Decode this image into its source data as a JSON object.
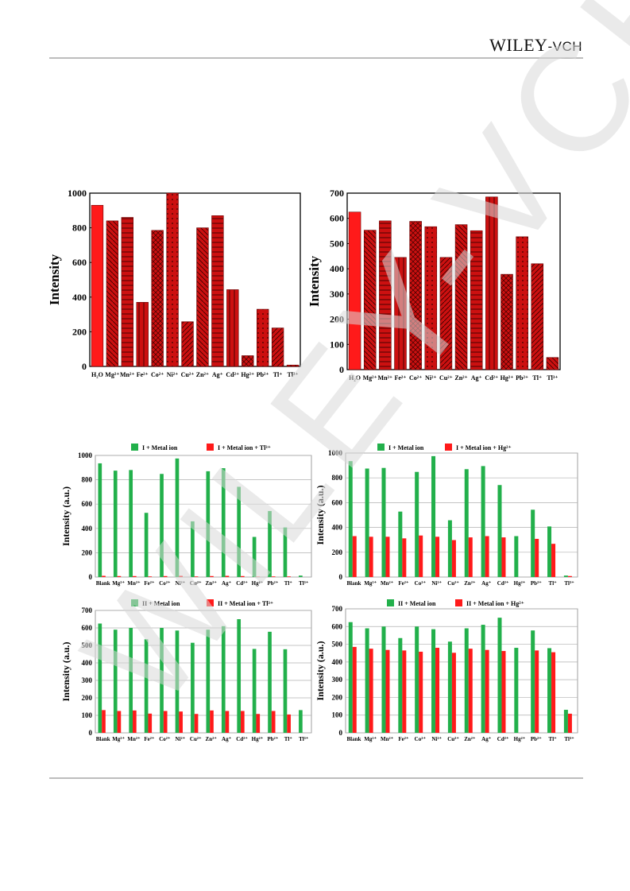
{
  "header": {
    "logo_main": "WILEY",
    "logo_suffix": "-VCH"
  },
  "watermark_text": "WILEY-VCH",
  "colors": {
    "dark_red": "#cc1010",
    "red": "#ff1a1a",
    "green": "#22b04b",
    "watermark": "#d9d9d9"
  },
  "chart_data": [
    {
      "type": "bar",
      "categories": [
        "H₂O",
        "Mg²⁺",
        "Mn²⁺",
        "Fe²⁺",
        "Co²⁺",
        "Ni²⁺",
        "Cu²⁺",
        "Zn²⁺",
        "Ag⁺",
        "Cd²⁺",
        "Hg²⁺",
        "Pb²⁺",
        "Tl⁺",
        "Tl³⁺"
      ],
      "values": [
        930,
        840,
        860,
        370,
        785,
        1000,
        258,
        800,
        870,
        443,
        62,
        330,
        222,
        8
      ],
      "ylabel": "Intensity",
      "ylim": [
        0,
        1000
      ],
      "yticks": [
        0,
        200,
        400,
        600,
        800,
        1000
      ]
    },
    {
      "type": "bar",
      "categories": [
        "H₂O",
        "Mg²⁺",
        "Mn²⁺",
        "Fe²⁺",
        "Co²⁺",
        "Ni²⁺",
        "Cu²⁺",
        "Zn²⁺",
        "Ag⁺",
        "Cd²⁺",
        "Hg²⁺",
        "Pb²⁺",
        "Tl⁺",
        "Tl³⁺"
      ],
      "values": [
        625,
        553,
        590,
        445,
        588,
        567,
        445,
        575,
        551,
        685,
        378,
        527,
        420,
        48
      ],
      "ylabel": "Intensity",
      "ylim": [
        0,
        700
      ],
      "yticks": [
        0,
        100,
        200,
        300,
        400,
        500,
        600,
        700
      ]
    },
    {
      "type": "bar",
      "categories": [
        "Blank",
        "Mg²⁺",
        "Mn²⁺",
        "Fe²⁺",
        "Co²⁺",
        "Ni²⁺",
        "Cu²⁺",
        "Zn²⁺",
        "Ag⁺",
        "Cd²⁺",
        "Hg²⁺",
        "Pb²⁺",
        "Tl⁺",
        "Tl³⁺"
      ],
      "series": [
        {
          "name": "I + Metal ion",
          "values": [
            935,
            875,
            880,
            528,
            848,
            975,
            458,
            870,
            895,
            742,
            330,
            543,
            408,
            12
          ]
        },
        {
          "name": "I + Metal ion + Tl³⁺",
          "values": [
            10,
            8,
            8,
            5,
            8,
            10,
            5,
            8,
            10,
            8,
            3,
            5,
            5,
            0
          ]
        }
      ],
      "ylabel": "Intensity (a.u.)",
      "ylim": [
        0,
        1000
      ],
      "yticks": [
        0,
        200,
        400,
        600,
        800,
        1000
      ]
    },
    {
      "type": "bar",
      "categories": [
        "Blank",
        "Mg²⁺",
        "Mn²⁺",
        "Fe²⁺",
        "Co²⁺",
        "Ni²⁺",
        "Cu²⁺",
        "Zn²⁺",
        "Ag⁺",
        "Cd²⁺",
        "Hg²⁺",
        "Pb²⁺",
        "Tl⁺",
        "Tl³⁺"
      ],
      "series": [
        {
          "name": "I + Metal ion",
          "values": [
            935,
            875,
            880,
            528,
            848,
            975,
            458,
            870,
            895,
            742,
            330,
            543,
            408,
            12
          ]
        },
        {
          "name": "I + Metal ion + Hg²⁺",
          "values": [
            330,
            325,
            325,
            312,
            335,
            325,
            298,
            320,
            330,
            320,
            0,
            308,
            268,
            8
          ]
        }
      ],
      "ylabel": "Intensity (a.u.)",
      "ylim": [
        0,
        1000
      ],
      "yticks": [
        0,
        200,
        400,
        600,
        800,
        1000
      ]
    },
    {
      "type": "bar",
      "categories": [
        "Blank",
        "Mg²⁺",
        "Mn²⁺",
        "Fe²⁺",
        "Co²⁺",
        "Ni²⁺",
        "Cu²⁺",
        "Zn²⁺",
        "Ag⁺",
        "Cd²⁺",
        "Hg²⁺",
        "Pb²⁺",
        "Tl⁺",
        "Tl³⁺"
      ],
      "series": [
        {
          "name": "II + Metal ion",
          "values": [
            625,
            590,
            600,
            535,
            600,
            585,
            515,
            590,
            610,
            650,
            480,
            578,
            478,
            130
          ]
        },
        {
          "name": "II + Metal ion + Tl³⁺",
          "values": [
            130,
            125,
            128,
            110,
            125,
            122,
            108,
            128,
            125,
            125,
            108,
            125,
            105,
            0
          ]
        }
      ],
      "ylabel": "Intensity (a.u.)",
      "ylim": [
        0,
        700
      ],
      "yticks": [
        0,
        100,
        200,
        300,
        400,
        500,
        600,
        700
      ]
    },
    {
      "type": "bar",
      "categories": [
        "Blank",
        "Mg²⁺",
        "Mn²⁺",
        "Fe²⁺",
        "Co²⁺",
        "Ni²⁺",
        "Cu²⁺",
        "Zn²⁺",
        "Ag⁺",
        "Cd²⁺",
        "Hg²⁺",
        "Pb²⁺",
        "Tl⁺",
        "Tl³⁺"
      ],
      "series": [
        {
          "name": "II + Metal ion",
          "values": [
            625,
            590,
            600,
            535,
            600,
            585,
            515,
            590,
            610,
            650,
            480,
            578,
            478,
            130
          ]
        },
        {
          "name": "II + Metal ion + Hg²⁺",
          "values": [
            485,
            475,
            468,
            465,
            458,
            480,
            452,
            475,
            468,
            462,
            0,
            465,
            455,
            108
          ]
        }
      ],
      "ylabel": "Intensity (a.u.)",
      "ylim": [
        0,
        700
      ],
      "yticks": [
        0,
        100,
        200,
        300,
        400,
        500,
        600,
        700
      ]
    }
  ]
}
